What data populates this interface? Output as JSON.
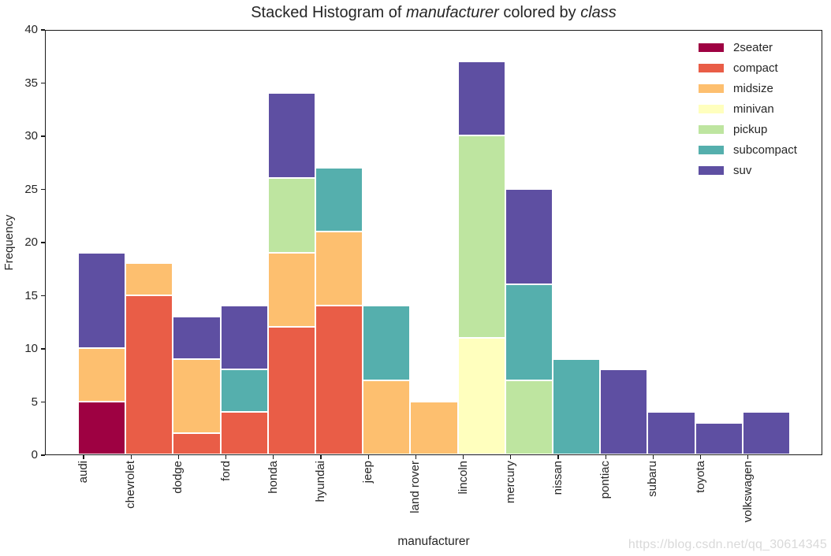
{
  "title_parts": [
    {
      "text": "Stacked Histogram of ",
      "italic": false
    },
    {
      "text": "manufacturer",
      "italic": true
    },
    {
      "text": " colored by ",
      "italic": false
    },
    {
      "text": "class",
      "italic": true
    }
  ],
  "watermark": "https://blog.csdn.net/qq_30614345",
  "chart_data": {
    "type": "bar",
    "stacked": true,
    "title": "Stacked Histogram of manufacturer colored by class",
    "xlabel": "manufacturer",
    "ylabel": "Frequency",
    "ylim": [
      0,
      40
    ],
    "yticks": [
      0,
      5,
      10,
      15,
      20,
      25,
      30,
      35,
      40
    ],
    "grid": false,
    "legend_position": "upper right",
    "bar_edge_color": "#ffffff",
    "categories": [
      "audi",
      "chevrolet",
      "dodge",
      "ford",
      "honda",
      "hyundai",
      "jeep",
      "land rover",
      "lincoln",
      "mercury",
      "nissan",
      "pontiac",
      "subaru",
      "toyota",
      "volkswagen"
    ],
    "series": [
      {
        "name": "2seater",
        "color": "#9E0142",
        "values": [
          5,
          0,
          0,
          0,
          0,
          0,
          0,
          0,
          0,
          0,
          0,
          0,
          0,
          0,
          0
        ]
      },
      {
        "name": "compact",
        "color": "#E95D47",
        "values": [
          0,
          15,
          2,
          4,
          12,
          14,
          0,
          0,
          0,
          0,
          0,
          0,
          0,
          0,
          0
        ]
      },
      {
        "name": "midsize",
        "color": "#FDBF6F",
        "values": [
          5,
          3,
          7,
          0,
          7,
          7,
          7,
          5,
          0,
          0,
          0,
          0,
          0,
          0,
          0
        ]
      },
      {
        "name": "minivan",
        "color": "#FFFFBE",
        "values": [
          0,
          0,
          0,
          0,
          0,
          0,
          0,
          0,
          11,
          0,
          0,
          0,
          0,
          0,
          0
        ]
      },
      {
        "name": "pickup",
        "color": "#BEE5A0",
        "values": [
          0,
          0,
          0,
          0,
          7,
          0,
          0,
          0,
          19,
          7,
          0,
          0,
          0,
          0,
          0
        ]
      },
      {
        "name": "subcompact",
        "color": "#55AFAD",
        "values": [
          0,
          0,
          0,
          4,
          0,
          6,
          7,
          0,
          0,
          9,
          9,
          0,
          0,
          0,
          0
        ]
      },
      {
        "name": "suv",
        "color": "#5E4FA2",
        "values": [
          9,
          0,
          4,
          6,
          8,
          0,
          0,
          0,
          7,
          9,
          0,
          8,
          4,
          3,
          4
        ]
      }
    ],
    "totals": [
      19,
      18,
      13,
      14,
      34,
      27,
      14,
      5,
      37,
      25,
      9,
      8,
      4,
      3,
      4
    ]
  }
}
